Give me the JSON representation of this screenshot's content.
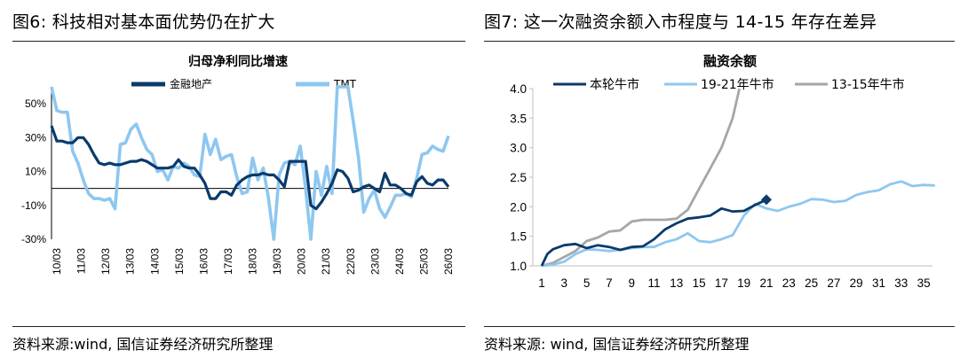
{
  "left": {
    "figure_title": "图6: 科技相对基本面优势仍在扩大",
    "source": "资料来源:wind, 国信证券经济研究所整理"
  },
  "right": {
    "figure_title": "图7: 这一次融资余额入市程度与 14-15 年存在差异",
    "source": "资料来源: wind, 国信证券经济研究所整理"
  },
  "colors": {
    "dark_blue": "#0b3a6b",
    "light_blue": "#8ec7f0",
    "grey": "#a6a6a6",
    "axis": "#bfbfbf"
  },
  "chart_data": [
    {
      "type": "line",
      "title": "归母净利同比增速",
      "ylim": [
        -30,
        60
      ],
      "yticks": [
        -30,
        -10,
        10,
        30,
        50
      ],
      "ytick_labels": [
        "-30%",
        "-10%",
        "10%",
        "30%",
        "50%"
      ],
      "x_ticks": [
        "10/03",
        "11/03",
        "12/03",
        "13/03",
        "14/03",
        "15/03",
        "16/03",
        "17/03",
        "18/03",
        "19/03",
        "20/03",
        "21/03",
        "22/03",
        "23/03",
        "24/03",
        "25/03",
        "26/03"
      ],
      "x_range": [
        0,
        64
      ],
      "series": [
        {
          "name": "金融地产",
          "color": "#0b3a6b",
          "values": [
            37,
            28,
            28,
            27,
            27,
            30,
            30,
            26,
            20,
            15,
            14,
            15,
            14,
            14,
            15,
            16,
            16,
            17,
            16,
            14,
            12,
            12,
            12,
            13,
            17,
            13,
            12,
            12,
            8,
            3,
            -6,
            -6,
            -2,
            -2,
            -4,
            2,
            5,
            7,
            8,
            8,
            9,
            8,
            8,
            5,
            1,
            16,
            16,
            16,
            16,
            -10,
            -12,
            -8,
            -3,
            3,
            11,
            10,
            6,
            -2,
            -1,
            1,
            2,
            0,
            -2,
            9,
            2,
            2,
            0,
            -3,
            -4,
            4,
            7,
            3,
            2,
            5,
            5,
            1
          ]
        },
        {
          "name": "TMT",
          "color": "#8ec7f0",
          "values": [
            60,
            46,
            45,
            45,
            22,
            15,
            5,
            -3,
            -6,
            -6,
            -7,
            -6,
            -12,
            26,
            27,
            35,
            38,
            30,
            23,
            20,
            10,
            11,
            5,
            13,
            12,
            15,
            13,
            8,
            7,
            32,
            20,
            29,
            17,
            19,
            20,
            7,
            -3,
            -2,
            18,
            5,
            12,
            -6,
            -30,
            8,
            15,
            16,
            14,
            25,
            0,
            -30,
            10,
            -4,
            13,
            -3,
            60,
            60,
            61,
            40,
            18,
            -14,
            -6,
            -1,
            -12,
            -17,
            -11,
            -4,
            -4,
            -3,
            -5,
            6,
            20,
            21,
            25,
            23,
            22,
            31
          ]
        }
      ]
    },
    {
      "type": "line",
      "title": "融资余额",
      "ylim": [
        1.0,
        4.0
      ],
      "yticks": [
        1.0,
        1.5,
        2.0,
        2.5,
        3.0,
        3.5,
        4.0
      ],
      "ytick_labels": [
        "1.0",
        "1.5",
        "2.0",
        "2.5",
        "3.0",
        "3.5",
        "4.0"
      ],
      "xlim": [
        1,
        36
      ],
      "xticks": [
        1,
        3,
        5,
        7,
        9,
        11,
        13,
        15,
        17,
        19,
        21,
        23,
        25,
        27,
        29,
        31,
        33,
        35
      ],
      "series": [
        {
          "name": "本轮牛市",
          "color": "#0b3a6b",
          "x": [
            1,
            1.5,
            2,
            3,
            4,
            5,
            6,
            7,
            8,
            9,
            10,
            11,
            12,
            13,
            14,
            15,
            16,
            17,
            18,
            19,
            20,
            21
          ],
          "y": [
            1.0,
            1.2,
            1.28,
            1.35,
            1.37,
            1.3,
            1.35,
            1.32,
            1.27,
            1.32,
            1.33,
            1.45,
            1.62,
            1.72,
            1.8,
            1.82,
            1.85,
            1.97,
            1.92,
            1.93,
            2.03,
            2.12
          ],
          "end_marker": "diamond"
        },
        {
          "name": "19-21年牛市",
          "color": "#8ec7f0",
          "x": [
            1,
            2,
            3,
            4,
            5,
            6,
            7,
            8,
            9,
            10,
            11,
            12,
            13,
            14,
            15,
            16,
            17,
            18,
            19,
            20,
            21,
            22,
            23,
            24,
            25,
            26,
            27,
            28,
            29,
            30,
            31,
            32,
            33,
            34,
            35,
            36
          ],
          "y": [
            1.0,
            1.02,
            1.07,
            1.2,
            1.28,
            1.27,
            1.25,
            1.27,
            1.3,
            1.32,
            1.32,
            1.4,
            1.45,
            1.55,
            1.42,
            1.4,
            1.45,
            1.52,
            1.85,
            2.05,
            1.97,
            1.93,
            2.0,
            2.05,
            2.13,
            2.12,
            2.08,
            2.1,
            2.2,
            2.25,
            2.28,
            2.38,
            2.43,
            2.35,
            2.37,
            2.36
          ]
        },
        {
          "name": "13-15年牛市",
          "color": "#a6a6a6",
          "x": [
            1,
            2,
            3,
            4,
            5,
            6,
            7,
            8,
            9,
            10,
            11,
            12,
            13,
            14,
            15,
            16,
            17,
            18,
            18.6
          ],
          "y": [
            1.0,
            1.05,
            1.15,
            1.25,
            1.42,
            1.48,
            1.58,
            1.6,
            1.75,
            1.78,
            1.78,
            1.78,
            1.8,
            1.95,
            2.3,
            2.65,
            3.0,
            3.5,
            4.0
          ]
        }
      ]
    }
  ]
}
